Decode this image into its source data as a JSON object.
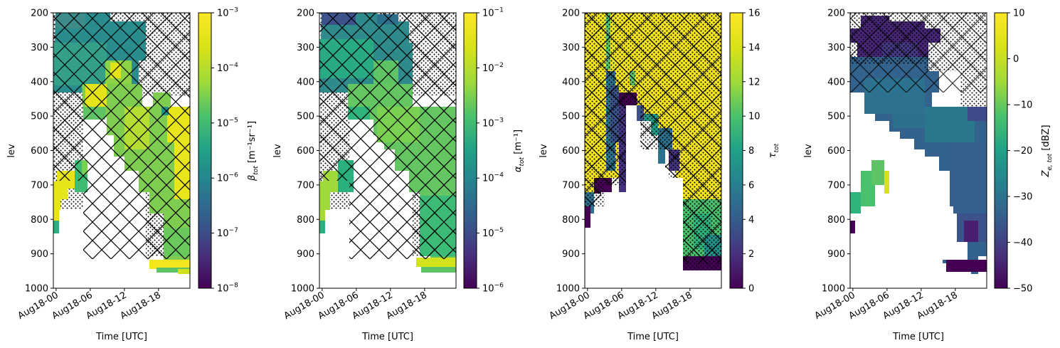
{
  "chart_data": [
    {
      "type": "heatmap",
      "title": "",
      "xlabel": "Time [UTC]",
      "ylabel": "lev",
      "xticks": [
        "Aug18-00",
        "Aug18-06",
        "Aug18-12",
        "Aug18-18"
      ],
      "yticks": [
        "200",
        "300",
        "400",
        "500",
        "600",
        "700",
        "800",
        "900",
        "1000"
      ],
      "ylim": [
        1000,
        200
      ],
      "colorbar": {
        "scale": "log",
        "label_base": "β",
        "label_sub": "tot",
        "label_unit": "[m⁻¹sr⁻¹]",
        "range": [
          1e-08,
          0.001
        ],
        "ticks": [
          {
            "base": "10",
            "exp": "−3"
          },
          {
            "base": "10",
            "exp": "−4"
          },
          {
            "base": "10",
            "exp": "−5"
          },
          {
            "base": "10",
            "exp": "−6"
          },
          {
            "base": "10",
            "exp": "−7"
          },
          {
            "base": "10",
            "exp": "−8"
          }
        ],
        "colormap": "viridis"
      },
      "hatching": [
        "cross-hatch",
        "dots"
      ]
    },
    {
      "type": "heatmap",
      "title": "",
      "xlabel": "Time [UTC]",
      "ylabel": "lev",
      "xticks": [
        "Aug18-00",
        "Aug18-06",
        "Aug18-12",
        "Aug18-18"
      ],
      "yticks": [
        "200",
        "300",
        "400",
        "500",
        "600",
        "700",
        "800",
        "900",
        "1000"
      ],
      "ylim": [
        1000,
        200
      ],
      "colorbar": {
        "scale": "log",
        "label_base": "α",
        "label_sub": "tot",
        "label_unit": "[m⁻¹]",
        "range": [
          1e-06,
          0.1
        ],
        "ticks": [
          {
            "base": "10",
            "exp": "−1"
          },
          {
            "base": "10",
            "exp": "−2"
          },
          {
            "base": "10",
            "exp": "−3"
          },
          {
            "base": "10",
            "exp": "−4"
          },
          {
            "base": "10",
            "exp": "−5"
          },
          {
            "base": "10",
            "exp": "−6"
          }
        ],
        "colormap": "viridis"
      },
      "hatching": [
        "cross-hatch",
        "dots"
      ]
    },
    {
      "type": "heatmap",
      "title": "",
      "xlabel": "Time [UTC]",
      "ylabel": "lev",
      "xticks": [
        "Aug18-00",
        "Aug18-06",
        "Aug18-12",
        "Aug18-18"
      ],
      "yticks": [
        "200",
        "300",
        "400",
        "500",
        "600",
        "700",
        "800",
        "900",
        "1000"
      ],
      "ylim": [
        1000,
        200
      ],
      "colorbar": {
        "scale": "linear",
        "label_base": "τ",
        "label_sub": "tot",
        "label_unit": "",
        "range": [
          0,
          16
        ],
        "ticks": [
          {
            "base": "16",
            "exp": ""
          },
          {
            "base": "14",
            "exp": ""
          },
          {
            "base": "12",
            "exp": ""
          },
          {
            "base": "10",
            "exp": ""
          },
          {
            "base": "8",
            "exp": ""
          },
          {
            "base": "6",
            "exp": ""
          },
          {
            "base": "4",
            "exp": ""
          },
          {
            "base": "2",
            "exp": ""
          },
          {
            "base": "0",
            "exp": ""
          }
        ],
        "colormap": "viridis"
      },
      "hatching": [
        "cross-hatch",
        "dots"
      ]
    },
    {
      "type": "heatmap",
      "title": "",
      "xlabel": "Time [UTC]",
      "ylabel": "lev",
      "xticks": [
        "Aug18-00",
        "Aug18-06",
        "Aug18-12",
        "Aug18-18"
      ],
      "yticks": [
        "200",
        "300",
        "400",
        "500",
        "600",
        "700",
        "800",
        "900",
        "1000"
      ],
      "ylim": [
        1000,
        200
      ],
      "colorbar": {
        "scale": "linear",
        "label_base": "Z",
        "label_sub": "e, tot",
        "label_unit": "[dBZ]",
        "range": [
          -50,
          10
        ],
        "ticks": [
          {
            "base": "10",
            "exp": ""
          },
          {
            "base": "0",
            "exp": ""
          },
          {
            "base": "−10",
            "exp": ""
          },
          {
            "base": "−20",
            "exp": ""
          },
          {
            "base": "−30",
            "exp": ""
          },
          {
            "base": "−40",
            "exp": ""
          },
          {
            "base": "−50",
            "exp": ""
          }
        ],
        "colormap": "viridis"
      },
      "hatching": [
        "dots"
      ]
    }
  ]
}
